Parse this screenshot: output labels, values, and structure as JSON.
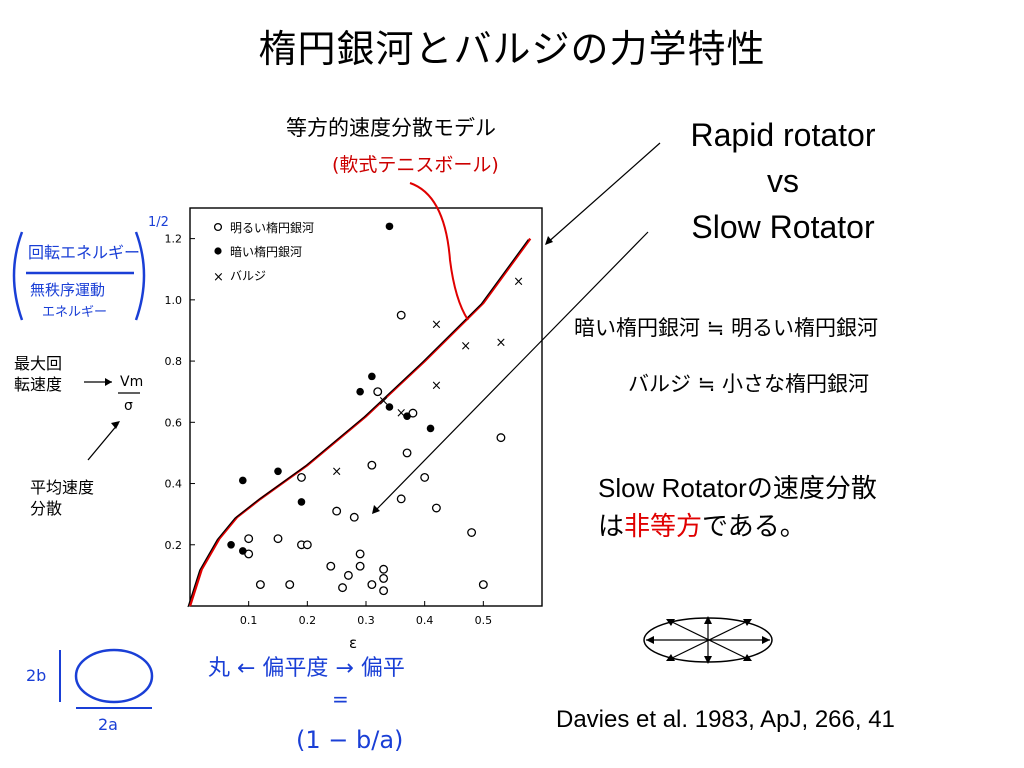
{
  "title": "楕円銀河とバルジの力学特性",
  "model_label": "等方的速度分散モデル",
  "model_sub": "(軟式テニスボール)",
  "rotator": {
    "line1": "Rapid rotator",
    "line2": "vs",
    "line3": "Slow Rotator"
  },
  "inequalities": {
    "row1": "暗い楕円銀河 ≒ 明るい楕円銀河",
    "row2": "バルジ ≒ 小さな楕円銀河"
  },
  "conclusion": {
    "line1": "Slow Rotatorの速度分散",
    "line2_pre": "は",
    "line2_red": "非等方",
    "line2_post": "である。"
  },
  "side_labels": {
    "max_rot": [
      "最大回",
      "転速度"
    ],
    "mean_disp": [
      "平均速度",
      "分散"
    ]
  },
  "handwriting": {
    "ratio_top": "回転エネルギー",
    "ratio_bottom": "無秩序運動",
    "ratio_bottom2": "エネルギー",
    "half_power": "1/2",
    "vm": "Vm",
    "sigma": "σ",
    "axis_note": "丸 ← 偏平度 → 偏平",
    "equals": "=",
    "formula": "(1 − b/a)",
    "dim_b": "2b",
    "dim_a": "2a",
    "epsilon": "ε"
  },
  "legend": {
    "open": "明るい楕円銀河",
    "filled": "暗い楕円銀河",
    "cross": "バルジ"
  },
  "citation": "Davies et al. 1983, ApJ, 266, 41",
  "colors": {
    "red": "#e00000",
    "blue": "#1a3fd6",
    "text": "#000000"
  },
  "chart_data": {
    "type": "scatter",
    "xlabel": "ε",
    "ylabel": "Vm/σ",
    "xlim": [
      0,
      0.6
    ],
    "ylim": [
      0,
      1.3
    ],
    "xticks": [
      "0.1",
      "0.2",
      "0.3",
      "0.4",
      "0.5"
    ],
    "yticks": [
      "0.2",
      "0.4",
      "0.6",
      "0.8",
      "1.0",
      "1.2"
    ],
    "series": [
      {
        "name": "明るい楕円銀河",
        "marker": "open-circle",
        "points": [
          [
            0.1,
            0.22
          ],
          [
            0.15,
            0.22
          ],
          [
            0.19,
            0.2
          ],
          [
            0.2,
            0.2
          ],
          [
            0.19,
            0.42
          ],
          [
            0.25,
            0.31
          ],
          [
            0.28,
            0.29
          ],
          [
            0.31,
            0.46
          ],
          [
            0.32,
            0.7
          ],
          [
            0.36,
            0.35
          ],
          [
            0.37,
            0.5
          ],
          [
            0.38,
            0.63
          ],
          [
            0.36,
            0.95
          ],
          [
            0.4,
            0.42
          ],
          [
            0.42,
            0.32
          ],
          [
            0.48,
            0.24
          ],
          [
            0.53,
            0.55
          ],
          [
            0.5,
            0.07
          ],
          [
            0.24,
            0.13
          ],
          [
            0.27,
            0.1
          ],
          [
            0.26,
            0.06
          ],
          [
            0.29,
            0.13
          ],
          [
            0.31,
            0.07
          ],
          [
            0.33,
            0.12
          ],
          [
            0.33,
            0.05
          ],
          [
            0.1,
            0.17
          ],
          [
            0.12,
            0.07
          ],
          [
            0.17,
            0.07
          ],
          [
            0.29,
            0.17
          ],
          [
            0.33,
            0.09
          ]
        ]
      },
      {
        "name": "暗い楕円銀河",
        "marker": "filled-circle",
        "points": [
          [
            0.07,
            0.2
          ],
          [
            0.09,
            0.18
          ],
          [
            0.09,
            0.41
          ],
          [
            0.15,
            0.44
          ],
          [
            0.19,
            0.34
          ],
          [
            0.29,
            0.7
          ],
          [
            0.31,
            0.75
          ],
          [
            0.34,
            0.65
          ],
          [
            0.37,
            0.62
          ],
          [
            0.41,
            0.58
          ],
          [
            0.34,
            1.24
          ]
        ]
      },
      {
        "name": "バルジ",
        "marker": "cross",
        "points": [
          [
            0.25,
            0.44
          ],
          [
            0.33,
            0.67
          ],
          [
            0.36,
            0.63
          ],
          [
            0.42,
            0.72
          ],
          [
            0.42,
            0.92
          ],
          [
            0.47,
            0.85
          ],
          [
            0.53,
            0.86
          ],
          [
            0.56,
            1.06
          ]
        ]
      }
    ],
    "model_curve": [
      [
        0,
        0
      ],
      [
        0.02,
        0.12
      ],
      [
        0.05,
        0.22
      ],
      [
        0.08,
        0.29
      ],
      [
        0.12,
        0.35
      ],
      [
        0.2,
        0.46
      ],
      [
        0.3,
        0.62
      ],
      [
        0.4,
        0.8
      ],
      [
        0.5,
        0.99
      ],
      [
        0.58,
        1.2
      ]
    ]
  }
}
